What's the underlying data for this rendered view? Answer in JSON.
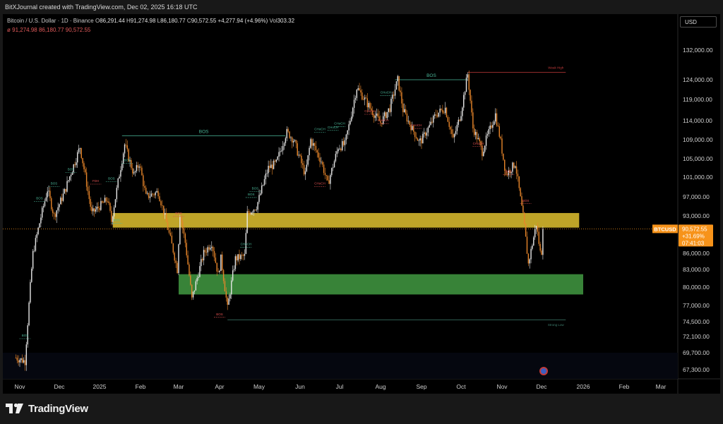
{
  "header": {
    "attribution": "BitXJournal created with TradingView.com, Dec 02, 2025 16:18 UTC"
  },
  "symbol": {
    "name": "Bitcoin / U.S. Dollar · 1D · Binance",
    "o_label": "O",
    "o": "86,291.44",
    "h_label": "H",
    "h": "91,274.98",
    "l_label": "L",
    "l": "86,180.77",
    "c_label": "C",
    "c": "90,572.55",
    "change": "+4,277.94 (+4.96%)",
    "vol_label": "Vol",
    "vol": "303.32"
  },
  "indicator": {
    "mark": "ø",
    "values": "91,274.98  86,180.77  90,572.55"
  },
  "currency": "USD",
  "price_tag": {
    "ticker": "BTCUSD",
    "price": "90,572.55",
    "change": "+31.69%",
    "countdown": "07:41:03"
  },
  "brand": {
    "name": "TradingView"
  },
  "colors": {
    "up": "#e8e8e8",
    "down": "#e8862a",
    "supply_zone": "#c9ad2a",
    "demand_zone": "#3b8a3b",
    "bos": "#4bb89a",
    "choch_up": "#4bb89a",
    "choch_down": "#e05050",
    "weak_high": "#c23a3a",
    "price_tag": "#f7931a"
  },
  "chart_data": {
    "type": "candlestick",
    "title": "Bitcoin / U.S. Dollar · 1D · Binance",
    "y_axis_labels": [
      "132,000.00",
      "124,000.00",
      "119,000.00",
      "114,000.00",
      "109,000.00",
      "105,000.00",
      "101,000.00",
      "97,000.00",
      "93,000.00",
      "86,000.00",
      "83,000.00",
      "80,000.00",
      "77,000.00",
      "74,500.00",
      "72,100.00",
      "69,700.00",
      "67,300.00"
    ],
    "x_axis_labels": [
      "Nov",
      "Dec",
      "2025",
      "Feb",
      "Mar",
      "Apr",
      "May",
      "Jun",
      "Jul",
      "Aug",
      "Sep",
      "Oct",
      "Nov",
      "Dec",
      "2026",
      "Feb",
      "Mar"
    ],
    "x_months": [
      "2024-11",
      "2024-12",
      "2025-01",
      "2025-02",
      "2025-03",
      "2025-04",
      "2025-05",
      "2025-06",
      "2025-07",
      "2025-08",
      "2025-09",
      "2025-10",
      "2025-11",
      "2025-12",
      "2026-01",
      "2026-02",
      "2026-03"
    ],
    "price_path": [
      [
        "2024-10-29",
        69000
      ],
      [
        "2024-11-05",
        68500
      ],
      [
        "2024-11-11",
        86000
      ],
      [
        "2024-11-22",
        98500
      ],
      [
        "2024-11-27",
        93000
      ],
      [
        "2024-12-05",
        98000
      ],
      [
        "2024-12-17",
        107500
      ],
      [
        "2024-12-26",
        93500
      ],
      [
        "2025-01-07",
        96500
      ],
      [
        "2025-01-10",
        92000
      ],
      [
        "2025-01-20",
        108000
      ],
      [
        "2025-01-27",
        101500
      ],
      [
        "2025-01-31",
        104000
      ],
      [
        "2025-02-05",
        97000
      ],
      [
        "2025-02-14",
        98000
      ],
      [
        "2025-02-25",
        86500
      ],
      [
        "2025-02-28",
        83000
      ],
      [
        "2025-03-02",
        93500
      ],
      [
        "2025-03-06",
        88000
      ],
      [
        "2025-03-11",
        78000
      ],
      [
        "2025-03-20",
        86000
      ],
      [
        "2025-03-26",
        88000
      ],
      [
        "2025-03-31",
        82000
      ],
      [
        "2025-04-02",
        85000
      ],
      [
        "2025-04-07",
        76500
      ],
      [
        "2025-04-13",
        85000
      ],
      [
        "2025-04-20",
        85500
      ],
      [
        "2025-04-22",
        93500
      ],
      [
        "2025-04-29",
        95000
      ],
      [
        "2025-05-08",
        103000
      ],
      [
        "2025-05-14",
        104000
      ],
      [
        "2025-05-22",
        111000
      ],
      [
        "2025-05-27",
        109000
      ],
      [
        "2025-06-05",
        101500
      ],
      [
        "2025-06-09",
        109000
      ],
      [
        "2025-06-17",
        104500
      ],
      [
        "2025-06-22",
        99500
      ],
      [
        "2025-06-30",
        107500
      ],
      [
        "2025-07-05",
        108000
      ],
      [
        "2025-07-14",
        122000
      ],
      [
        "2025-07-20",
        119000
      ],
      [
        "2025-07-25",
        116500
      ],
      [
        "2025-08-01",
        113500
      ],
      [
        "2025-08-08",
        117000
      ],
      [
        "2025-08-14",
        124000
      ],
      [
        "2025-08-18",
        116500
      ],
      [
        "2025-08-30",
        108500
      ],
      [
        "2025-09-01",
        109000
      ],
      [
        "2025-09-12",
        115500
      ],
      [
        "2025-09-19",
        117000
      ],
      [
        "2025-09-25",
        109000
      ],
      [
        "2025-10-01",
        116000
      ],
      [
        "2025-10-06",
        125500
      ],
      [
        "2025-10-10",
        112000
      ],
      [
        "2025-10-17",
        106500
      ],
      [
        "2025-10-21",
        110000
      ],
      [
        "2025-10-27",
        115500
      ],
      [
        "2025-11-04",
        101500
      ],
      [
        "2025-11-11",
        104000
      ],
      [
        "2025-11-18",
        91000
      ],
      [
        "2025-11-21",
        84000
      ],
      [
        "2025-11-27",
        91500
      ],
      [
        "2025-11-30",
        86200
      ],
      [
        "2025-12-01",
        86300
      ],
      [
        "2025-12-02",
        90572.55
      ]
    ],
    "zones": [
      {
        "name": "supply",
        "from": "2025-01-11",
        "to": "2025-12-29",
        "low": 90800,
        "high": 93600
      },
      {
        "name": "demand",
        "from": "2025-03-01",
        "to": "2026-01-01",
        "low": 78800,
        "high": 82200
      }
    ],
    "lines": [
      {
        "label": "BOS",
        "type": "bos",
        "from": "2025-01-18",
        "to": "2025-05-21",
        "price": 110000
      },
      {
        "label": "BOS",
        "type": "bos",
        "from": "2025-08-12",
        "to": "2025-10-06",
        "price": 124000
      },
      {
        "label": "Weak High",
        "type": "weak_high",
        "from": "2025-10-06",
        "to": "2025-12-19",
        "price": 126000
      },
      {
        "label": "Strong Low",
        "type": "strong_low",
        "from": "2025-04-07",
        "to": "2025-12-19",
        "price": 74800
      }
    ],
    "markers": [
      {
        "t": "BOS",
        "type": "bos",
        "d": "2024-11-05",
        "p": 72100
      },
      {
        "t": "BOS",
        "type": "bos",
        "d": "2024-11-16",
        "p": 96500
      },
      {
        "t": "BOS",
        "type": "bos",
        "d": "2024-11-27",
        "p": 99500
      },
      {
        "t": "BOS",
        "type": "bos",
        "d": "2024-12-10",
        "p": 102500
      },
      {
        "t": "FDH",
        "type": "choch_down",
        "d": "2024-12-29",
        "p": 100000
      },
      {
        "t": "BOS",
        "type": "bos",
        "d": "2025-01-10",
        "p": 100500
      },
      {
        "t": "BOS",
        "type": "bos",
        "d": "2025-01-14",
        "p": 92000
      },
      {
        "t": "BOS",
        "type": "bos",
        "d": "2025-01-22",
        "p": 104500
      },
      {
        "t": "BOS",
        "type": "choch_down",
        "d": "2025-03-01",
        "p": 93300
      },
      {
        "t": "CHoCH",
        "type": "choch_up",
        "d": "2025-04-21",
        "p": 87500
      },
      {
        "t": "BOS",
        "type": "bos",
        "d": "2025-04-25",
        "p": 97300
      },
      {
        "t": "BOS",
        "type": "bos",
        "d": "2025-04-28",
        "p": 98500
      },
      {
        "t": "CHoCH",
        "type": "choch_up",
        "d": "2025-06-16",
        "p": 111500
      },
      {
        "t": "CHoCH",
        "type": "choch_up",
        "d": "2025-06-26",
        "p": 112000
      },
      {
        "t": "CHoCH",
        "type": "choch_up",
        "d": "2025-07-01",
        "p": 113000
      },
      {
        "t": "CHoCH",
        "type": "choch_down",
        "d": "2025-06-16",
        "p": 99500
      },
      {
        "t": "CHoCH",
        "type": "choch_up",
        "d": "2025-08-05",
        "p": 120500
      },
      {
        "t": "CHoCH",
        "type": "choch_down",
        "d": "2025-07-24",
        "p": 116000
      },
      {
        "t": "CHoCH",
        "type": "choch_down",
        "d": "2025-08-03",
        "p": 113800
      },
      {
        "t": "CHoCH",
        "type": "choch_down",
        "d": "2025-08-28",
        "p": 112500
      },
      {
        "t": "CHoCH",
        "type": "choch_down",
        "d": "2025-10-14",
        "p": 108000
      },
      {
        "t": "BOS",
        "type": "choch_down",
        "d": "2025-11-06",
        "p": 102000
      },
      {
        "t": "BOS",
        "type": "choch_down",
        "d": "2025-11-19",
        "p": 96000
      },
      {
        "t": "BOS",
        "type": "choch_down",
        "d": "2025-04-01",
        "p": 75500
      }
    ]
  }
}
